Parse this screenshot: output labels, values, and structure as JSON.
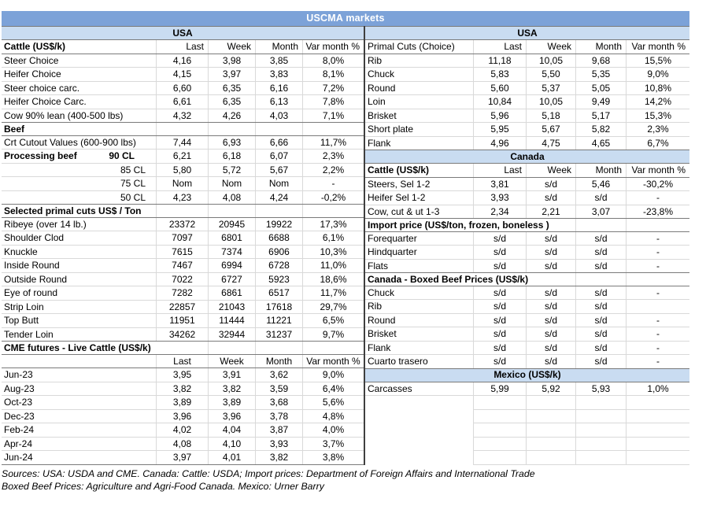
{
  "title": "USCMA markets",
  "colors": {
    "title_bg": "#7CA2D8",
    "band_bg": "#C9DCF1",
    "dark_border": "#7a7a7a",
    "light_border": "#d9d9d9",
    "divider": "#3f3f3f"
  },
  "footer": {
    "line1": "Sources: USA: USDA and CME. Canada: Cattle: USDA; Import prices: Department of Foreign Affairs and International Trade",
    "line2": "Boxed Beef Prices: Agriculture and Agri-Food Canada. Mexico: Urner Barry"
  },
  "tables": {
    "left": {
      "widths": [
        196,
        66,
        60,
        60,
        78
      ],
      "rows": [
        {
          "t": "band",
          "l": "USA"
        },
        {
          "t": "header",
          "l": "Cattle (US$/k)",
          "b": 1,
          "c": [
            "Last",
            "Week",
            "Month",
            "Var month %"
          ]
        },
        {
          "t": "row",
          "l": "Steer Choice",
          "c": [
            "4,16",
            "3,98",
            "3,85",
            "8,0%"
          ]
        },
        {
          "t": "row",
          "l": "Heifer Choice",
          "c": [
            "4,15",
            "3,97",
            "3,83",
            "8,1%"
          ]
        },
        {
          "t": "row",
          "l": "Steer choice carc.",
          "c": [
            "6,60",
            "6,35",
            "6,16",
            "7,2%"
          ]
        },
        {
          "t": "row",
          "l": "Heifer Choice Carc.",
          "c": [
            "6,61",
            "6,35",
            "6,13",
            "7,8%"
          ]
        },
        {
          "t": "row",
          "l": "Cow 90% lean (400-500 lbs)",
          "c": [
            "4,32",
            "4,26",
            "4,03",
            "7,1%"
          ]
        },
        {
          "t": "sec",
          "l": "Beef",
          "span": 1
        },
        {
          "t": "row",
          "l": "Crt Cutout Values (600-900 lbs)",
          "c": [
            "7,44",
            "6,93",
            "6,66",
            "11,7%"
          ]
        },
        {
          "t": "row",
          "l": "Processing beef",
          "l2": "90 CL",
          "b": 1,
          "c": [
            "6,21",
            "6,18",
            "6,07",
            "2,3%"
          ]
        },
        {
          "t": "row",
          "l": "85 CL",
          "la": "r",
          "c": [
            "5,80",
            "5,72",
            "5,67",
            "2,2%"
          ]
        },
        {
          "t": "row",
          "l": "75 CL",
          "la": "r",
          "c": [
            "Nom",
            "Nom",
            "Nom",
            "-"
          ]
        },
        {
          "t": "row",
          "l": "50 CL",
          "la": "r",
          "c": [
            "4,23",
            "4,08",
            "4,24",
            "-0,2%"
          ]
        },
        {
          "t": "sec",
          "l": "Selected primal cuts US$ / Ton",
          "span": 1
        },
        {
          "t": "row",
          "l": "Ribeye (over 14 lb.)",
          "c": [
            "23372",
            "20945",
            "19922",
            "17,3%"
          ]
        },
        {
          "t": "row",
          "l": "Shoulder Clod",
          "c": [
            "7097",
            "6801",
            "6688",
            "6,1%"
          ]
        },
        {
          "t": "row",
          "l": "Knuckle",
          "c": [
            "7615",
            "7374",
            "6906",
            "10,3%"
          ]
        },
        {
          "t": "row",
          "l": "Inside Round",
          "c": [
            "7467",
            "6994",
            "6728",
            "11,0%"
          ]
        },
        {
          "t": "row",
          "l": "Outside Round",
          "c": [
            "7022",
            "6727",
            "5923",
            "18,6%"
          ]
        },
        {
          "t": "row",
          "l": "Eye of round",
          "c": [
            "7282",
            "6861",
            "6517",
            "11,7%"
          ]
        },
        {
          "t": "row",
          "l": "Strip Loin",
          "c": [
            "22857",
            "21043",
            "17618",
            "29,7%"
          ]
        },
        {
          "t": "row",
          "l": "Top Butt",
          "c": [
            "11951",
            "11444",
            "11221",
            "6,5%"
          ]
        },
        {
          "t": "row",
          "l": "Tender Loin",
          "c": [
            "34262",
            "32944",
            "31237",
            "9,7%"
          ]
        },
        {
          "t": "sec",
          "l": "CME futures - Live Cattle (US$/k)",
          "span": 2
        },
        {
          "t": "sub",
          "l": "",
          "c": [
            "Last",
            "Week",
            "Month",
            "Var month %"
          ]
        },
        {
          "t": "row",
          "l": "Jun-23",
          "c": [
            "3,95",
            "3,91",
            "3,62",
            "9,0%"
          ]
        },
        {
          "t": "row",
          "l": "Aug-23",
          "c": [
            "3,82",
            "3,82",
            "3,59",
            "6,4%"
          ]
        },
        {
          "t": "row",
          "l": "Oct-23",
          "c": [
            "3,89",
            "3,89",
            "3,68",
            "5,6%"
          ]
        },
        {
          "t": "row",
          "l": "Dec-23",
          "c": [
            "3,96",
            "3,96",
            "3,78",
            "4,8%"
          ]
        },
        {
          "t": "row",
          "l": "Feb-24",
          "c": [
            "4,02",
            "4,04",
            "3,87",
            "4,0%"
          ]
        },
        {
          "t": "row",
          "l": "Apr-24",
          "c": [
            "4,08",
            "4,10",
            "3,93",
            "3,7%"
          ]
        },
        {
          "t": "row",
          "l": "Jun-24",
          "db": 1,
          "c": [
            "3,97",
            "4,01",
            "3,82",
            "3,8%"
          ]
        }
      ]
    },
    "right": {
      "widths": [
        137,
        67,
        63,
        64,
        81
      ],
      "rows": [
        {
          "t": "band",
          "l": "USA"
        },
        {
          "t": "header",
          "l": "Primal Cuts (Choice)",
          "c": [
            "Last",
            "Week",
            "Month",
            "Var month %"
          ]
        },
        {
          "t": "row",
          "l": "Rib",
          "c": [
            "11,18",
            "10,05",
            "9,68",
            "15,5%"
          ]
        },
        {
          "t": "row",
          "l": "Chuck",
          "c": [
            "5,83",
            "5,50",
            "5,35",
            "9,0%"
          ]
        },
        {
          "t": "row",
          "l": "Round",
          "c": [
            "5,60",
            "5,37",
            "5,05",
            "10,8%"
          ]
        },
        {
          "t": "row",
          "l": "Loin",
          "c": [
            "10,84",
            "10,05",
            "9,49",
            "14,2%"
          ]
        },
        {
          "t": "row",
          "l": "Brisket",
          "c": [
            "5,96",
            "5,18",
            "5,17",
            "15,3%"
          ]
        },
        {
          "t": "row",
          "l": "Short plate",
          "c": [
            "5,95",
            "5,67",
            "5,82",
            "2,3%"
          ]
        },
        {
          "t": "row",
          "l": "Flank",
          "c": [
            "4,96",
            "4,75",
            "4,65",
            "6,7%"
          ]
        },
        {
          "t": "band",
          "l": "Canada"
        },
        {
          "t": "header",
          "l": "Cattle (US$/k)",
          "b": 1,
          "c": [
            "Last",
            "Week",
            "Month",
            "Var month %"
          ]
        },
        {
          "t": "row",
          "l": "Steers, Sel 1-2",
          "c": [
            "3,81",
            "s/d",
            "5,46",
            "-30,2%"
          ]
        },
        {
          "t": "row",
          "l": "Heifer Sel 1-2",
          "c": [
            "3,93",
            "s/d",
            "s/d",
            "-"
          ]
        },
        {
          "t": "row",
          "l": "Cow, cut & ut 1-3",
          "c": [
            "2,34",
            "2,21",
            "3,07",
            "-23,8%"
          ]
        },
        {
          "t": "sec",
          "l": "Import price (US$/ton, frozen, boneless )",
          "span": 3
        },
        {
          "t": "row",
          "l": "Forequarter",
          "c": [
            "s/d",
            "s/d",
            "s/d",
            "-"
          ]
        },
        {
          "t": "row",
          "l": "Hindquarter",
          "c": [
            "s/d",
            "s/d",
            "s/d",
            "-"
          ]
        },
        {
          "t": "row",
          "l": "Flats",
          "c": [
            "s/d",
            "s/d",
            "s/d",
            "-"
          ]
        },
        {
          "t": "sec",
          "l": "Canada - Boxed Beef Prices (US$/k)",
          "span": 3
        },
        {
          "t": "row",
          "l": "Chuck",
          "c": [
            "s/d",
            "s/d",
            "s/d",
            "-"
          ]
        },
        {
          "t": "row",
          "l": "Rib",
          "c": [
            "s/d",
            "s/d",
            "s/d",
            ""
          ]
        },
        {
          "t": "row",
          "l": "Round",
          "c": [
            "s/d",
            "s/d",
            "s/d",
            "-"
          ]
        },
        {
          "t": "row",
          "l": "Brisket",
          "c": [
            "s/d",
            "s/d",
            "s/d",
            "-"
          ]
        },
        {
          "t": "row",
          "l": "Flank",
          "c": [
            "s/d",
            "s/d",
            "s/d",
            "-"
          ]
        },
        {
          "t": "row",
          "l": "Cuarto trasero",
          "c": [
            "s/d",
            "s/d",
            "s/d",
            "-"
          ]
        },
        {
          "t": "band",
          "l": "Mexico (US$/k)"
        },
        {
          "t": "row",
          "l": "Carcasses",
          "c": [
            "5,99",
            "5,92",
            "5,93",
            "1,0%"
          ]
        },
        {
          "t": "empty"
        },
        {
          "t": "empty"
        },
        {
          "t": "empty"
        },
        {
          "t": "empty"
        },
        {
          "t": "empty"
        }
      ]
    }
  }
}
